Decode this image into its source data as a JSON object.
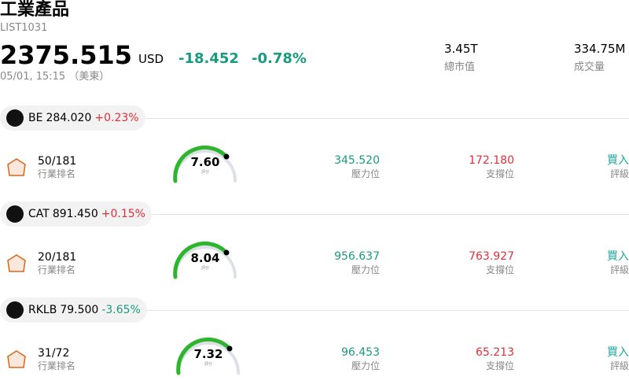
{
  "header": {
    "title": "工業產品",
    "code": "LIST1031",
    "price": "2375.515",
    "currency": "USD",
    "change": "-18.452",
    "change_pct": "-0.78%",
    "time": "05/01, 15:15 （美東）",
    "stats": [
      {
        "value": "3.45T",
        "label": "總市值"
      },
      {
        "value": "334.75M",
        "label": "成交量"
      }
    ]
  },
  "stocks": [
    {
      "ticker": "BE",
      "price": "284.020",
      "change": "+0.23%",
      "rank": "50/181",
      "rank_label": "行業排名",
      "score": "7.60",
      "score_label": "評分",
      "resistance": "345.520",
      "resistance_label": "壓力位",
      "support": "172.180",
      "support_label": "支撐位",
      "rating": "買入",
      "rating_label": "評級"
    },
    {
      "ticker": "CAT",
      "price": "891.450",
      "change": "+0.15%",
      "rank": "20/181",
      "rank_label": "行業排名",
      "score": "8.04",
      "score_label": "評分",
      "resistance": "956.637",
      "resistance_label": "壓力位",
      "support": "763.927",
      "support_label": "支撐位",
      "rating": "買入",
      "rating_label": "評級"
    },
    {
      "ticker": "RKLB",
      "price": "79.500",
      "change": "-3.65%",
      "rank": "31/72",
      "rank_label": "行業排名",
      "score": "7.32",
      "score_label": "評分",
      "resistance": "96.453",
      "resistance_label": "壓力位",
      "support": "65.213",
      "support_label": "支撐位",
      "rating": "買入",
      "rating_label": "評級"
    }
  ]
}
